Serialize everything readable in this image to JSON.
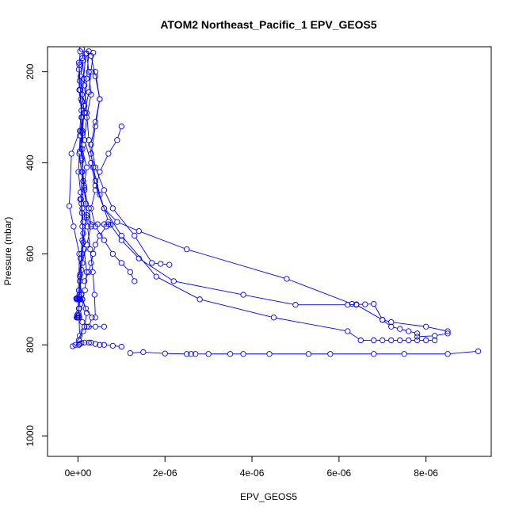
{
  "chart_data": {
    "type": "line",
    "title": "ATOM2 Northeast_Pacific_1 EPV_GEOS5",
    "xlabel": "EPV_GEOS5",
    "ylabel": "Pressure (mbar)",
    "xlim": [
      -7e-07,
      9.5e-06
    ],
    "ylim": [
      1045,
      145
    ],
    "y_reversed": true,
    "grid": false,
    "line_color": "#0000ff",
    "marker": "open-circle",
    "x_ticks": [
      {
        "value": 0,
        "label": "0e+00"
      },
      {
        "value": 2e-06,
        "label": "2e-06"
      },
      {
        "value": 4e-06,
        "label": "4e-06"
      },
      {
        "value": 6e-06,
        "label": "6e-06"
      },
      {
        "value": 8e-06,
        "label": "8e-06"
      }
    ],
    "y_ticks": [
      {
        "value": 200,
        "label": "200"
      },
      {
        "value": 400,
        "label": "400"
      },
      {
        "value": 600,
        "label": "600"
      },
      {
        "value": 800,
        "label": "800"
      },
      {
        "value": 1000,
        "label": "1000"
      }
    ],
    "series": [
      {
        "x": [
          9e-08,
          1.2e-07,
          6e-08,
          9e-08,
          1.5e-07,
          7e-08,
          1e-07,
          2e-07,
          1.4e-07,
          8e-08,
          1.2e-07,
          1e-07,
          6e-08,
          4e-08,
          8e-08,
          2e-07,
          1.5e-07,
          -6e-08,
          2e-08,
          1.2e-07,
          2.5e-07,
          3.2e-07,
          1.8e-07,
          1e-07
        ],
        "y": [
          150,
          175,
          210,
          250,
          290,
          330,
          370,
          410,
          450,
          490,
          530,
          570,
          610,
          650,
          690,
          730,
          760,
          800,
          790,
          770,
          760,
          740,
          720,
          700
        ]
      },
      {
        "x": [
          5e-08,
          2e-08,
          3e-08,
          8e-08,
          1e-07,
          4e-08,
          1e-08,
          6e-08,
          9e-08,
          1.2e-07,
          8e-08,
          5e-08,
          3e-08,
          2e-08,
          4e-08
        ],
        "y": [
          155,
          195,
          240,
          285,
          330,
          375,
          420,
          465,
          510,
          555,
          600,
          645,
          690,
          735,
          780
        ]
      },
      {
        "x": [
          2e-07,
          2.5e-07,
          3e-07,
          2e-07,
          1.5e-07,
          3e-07,
          4e-07,
          6e-07,
          9e-07,
          1.4e-06,
          2.5e-06,
          4.8e-06,
          6.3e-06,
          6.4e-06,
          7e-06,
          7.2e-06,
          8e-06,
          8.5e-06,
          8.5e-06,
          8.2e-06,
          7.8e-06
        ],
        "y": [
          160,
          200,
          250,
          300,
          350,
          400,
          450,
          500,
          530,
          550,
          590,
          655,
          710,
          712,
          745,
          750,
          760,
          770,
          775,
          780,
          782
        ]
      },
      {
        "x": [
          3e-07,
          4e-07,
          5e-07,
          4e-07,
          3e-07,
          4e-07,
          6e-07,
          8e-07,
          1.3e-06,
          1.7e-06,
          1.9e-06,
          2.1e-06
        ],
        "y": [
          165,
          210,
          260,
          310,
          360,
          410,
          460,
          500,
          560,
          620,
          622,
          624
        ]
      },
      {
        "x": [
          1e-07,
          1.5e-07,
          2e-07,
          2.5e-07,
          3.5e-07,
          5e-07,
          7e-07,
          1e-06,
          1.4e-06,
          2.2e-06,
          3.8e-06,
          5e-06,
          6.2e-06,
          6.4e-06,
          6.6e-06,
          6.8e-06,
          7e-06,
          7.2e-06,
          7.4e-06,
          7.6e-06,
          7.8e-06
        ],
        "y": [
          170,
          230,
          290,
          350,
          410,
          470,
          530,
          570,
          610,
          660,
          690,
          712,
          712,
          711,
          711,
          710,
          745,
          760,
          765,
          770,
          775
        ]
      },
      {
        "x": [
          2e-08,
          4e-08,
          7e-08,
          9e-08,
          5e-08,
          3e-08,
          8e-08,
          1.5e-07,
          2.5e-07,
          3e-07,
          2e-07,
          1e-07,
          4e-08,
          -2e-08,
          -4e-08,
          -3e-08,
          0,
          2e-08,
          4e-08,
          5e-08
        ],
        "y": [
          180,
          220,
          260,
          300,
          340,
          380,
          420,
          460,
          500,
          540,
          580,
          620,
          660,
          698,
          698,
          700,
          700,
          700,
          700,
          700
        ]
      },
      {
        "x": [
          4e-07,
          5e-07,
          4e-07,
          3e-07,
          4e-07,
          6e-07,
          1e-06,
          1.8e-06,
          2.8e-06,
          4.5e-06,
          6.2e-06,
          6.5e-06,
          6.8e-06,
          7e-06,
          7.2e-06,
          7.4e-06,
          7.6e-06,
          7.8e-06,
          8e-06,
          8.2e-06
        ],
        "y": [
          200,
          260,
          320,
          380,
          440,
          500,
          560,
          650,
          700,
          740,
          770,
          790,
          790,
          790,
          790,
          790,
          790,
          790,
          790,
          790
        ]
      },
      {
        "x": [
          3e-08,
          5e-08,
          8e-08,
          1.2e-07,
          1e-07,
          7e-08,
          1e-07,
          1.4e-07,
          2e-07,
          1.6e-07,
          1e-07,
          6e-08,
          3e-08,
          1e-08,
          -1e-08,
          -2e-08,
          -1e-08,
          1e-08
        ],
        "y": [
          185,
          240,
          300,
          360,
          420,
          480,
          540,
          590,
          640,
          680,
          700,
          710,
          720,
          730,
          735,
          740,
          740,
          740
        ]
      },
      {
        "x": [
          2.5e-07,
          2e-07,
          1.5e-07,
          1e-07,
          8e-08,
          1.5e-07,
          2e-07,
          1.2e-07,
          8e-08,
          4e-08,
          2e-08,
          3e-08,
          1e-07,
          2e-07,
          4e-07,
          6e-07
        ],
        "y": [
          155,
          215,
          275,
          335,
          395,
          455,
          515,
          575,
          635,
          695,
          720,
          740,
          750,
          760,
          760,
          760
        ]
      },
      {
        "x": [
          1e-06,
          9e-07,
          7e-07,
          5e-07,
          4e-07,
          3e-07,
          4e-07,
          6e-07,
          8e-07,
          1e-06,
          1.2e-06,
          1.3e-06
        ],
        "y": [
          320,
          350,
          380,
          420,
          460,
          500,
          540,
          570,
          600,
          620,
          640,
          660
        ]
      },
      {
        "x": [
          1.8e-07,
          1.3e-07,
          9e-08,
          4e-08,
          -1.5e-07,
          -2e-07,
          -1e-07,
          3e-08,
          2e-08,
          4e-08,
          3e-08,
          -2e-08,
          -3e-08
        ],
        "y": [
          160,
          215,
          265,
          330,
          380,
          495,
          540,
          600,
          680,
          700,
          720,
          735,
          740
        ]
      },
      {
        "x": [
          -1.2e-07,
          2e-08,
          4e-08,
          8e-08,
          1.5e-07,
          2.5e-07,
          3e-07,
          4e-07,
          5e-07,
          6e-07,
          8e-07,
          1e-06
        ],
        "y": [
          803,
          800,
          798,
          796,
          795,
          795,
          795,
          798,
          800,
          800,
          802,
          804
        ]
      },
      {
        "x": [
          1.2e-06,
          1.5e-06,
          2e-06,
          2.5e-06,
          2.6e-06,
          2.7e-06,
          3e-06,
          3.5e-06,
          3.8e-06,
          4.4e-06,
          5.3e-06,
          5.8e-06,
          6.8e-06,
          7.5e-06,
          8.5e-06,
          9.2e-06
        ],
        "y": [
          818,
          816,
          819,
          820,
          820,
          820,
          820,
          820,
          820,
          820,
          820,
          820,
          820,
          820,
          820,
          814
        ]
      },
      {
        "x": [
          5e-08,
          1e-07,
          2e-07,
          3e-07,
          4.5e-07,
          6e-07,
          7e-07,
          7.5e-07,
          6.5e-07,
          5e-07,
          4e-07,
          3.5e-07,
          3e-07,
          2.5e-07,
          1.5e-07
        ],
        "y": [
          480,
          500,
          520,
          535,
          535,
          535,
          535,
          536,
          540,
          560,
          580,
          600,
          620,
          640,
          660
        ]
      },
      {
        "x": [
          3.5e-07,
          3e-07,
          2.5e-07,
          1.5e-07,
          5e-08,
          8e-08,
          1.2e-07,
          1.8e-07,
          2.2e-07,
          2.8e-07,
          3.4e-07,
          3.8e-07,
          4e-07
        ],
        "y": [
          158,
          200,
          245,
          290,
          340,
          390,
          440,
          490,
          540,
          590,
          640,
          690,
          740
        ]
      }
    ]
  }
}
